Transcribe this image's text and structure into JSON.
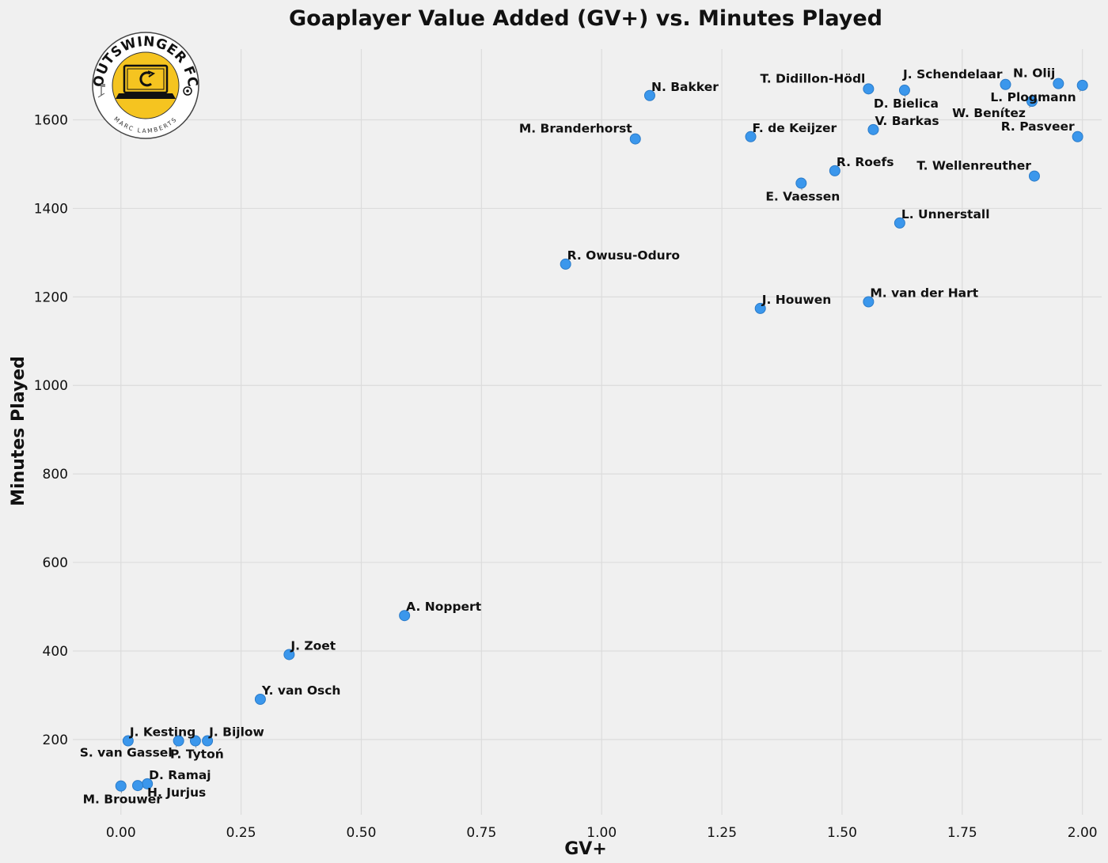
{
  "chart_data": {
    "type": "scatter",
    "title": "Goaplayer Value Added (GV+) vs. Minutes Played",
    "xlabel": "GV+",
    "ylabel": "Minutes Played",
    "xlim": [
      -0.1,
      2.04
    ],
    "ylim": [
      30,
      1760
    ],
    "x_ticks": [
      "0.00",
      "0.25",
      "0.50",
      "0.75",
      "1.00",
      "1.25",
      "1.50",
      "1.75",
      "2.00"
    ],
    "x_tick_values": [
      0,
      0.25,
      0.5,
      0.75,
      1.0,
      1.25,
      1.5,
      1.75,
      2.0
    ],
    "y_ticks": [
      "200",
      "400",
      "600",
      "800",
      "1000",
      "1200",
      "1400",
      "1600"
    ],
    "y_tick_values": [
      200,
      400,
      600,
      800,
      1000,
      1200,
      1400,
      1600
    ],
    "grid": true,
    "marker_color": "#3b97ec",
    "points": [
      {
        "name": "N. Bakker",
        "x": 1.1,
        "y": 1655,
        "label_pos": "above-right"
      },
      {
        "name": "M. Branderhorst",
        "x": 1.07,
        "y": 1557,
        "label_pos": "above-left"
      },
      {
        "name": "T. Didillon-Hödl",
        "x": 1.555,
        "y": 1670,
        "label_pos": "above-left"
      },
      {
        "name": "J. Schendelaar",
        "x": 1.84,
        "y": 1680,
        "label_pos": "above-left"
      },
      {
        "name": "N. Olij",
        "x": 1.95,
        "y": 1682,
        "label_pos": "above-left"
      },
      {
        "name": "D. Bielica",
        "x": 1.63,
        "y": 1667,
        "label_pos": "below"
      },
      {
        "name": "L. Plogmann",
        "x": 2.0,
        "y": 1678,
        "label_pos": "below-left"
      },
      {
        "name": "W. Benítez",
        "x": 1.895,
        "y": 1642,
        "label_pos": "below-left"
      },
      {
        "name": "F. de Keijzer",
        "x": 1.31,
        "y": 1562,
        "label_pos": "above-right"
      },
      {
        "name": "V. Barkas",
        "x": 1.565,
        "y": 1578,
        "label_pos": "above-right"
      },
      {
        "name": "R. Pasveer",
        "x": 1.99,
        "y": 1562,
        "label_pos": "above-left"
      },
      {
        "name": "R. Roefs",
        "x": 1.485,
        "y": 1485,
        "label_pos": "above-right"
      },
      {
        "name": "T. Wellenreuther",
        "x": 1.9,
        "y": 1473,
        "label_pos": "above-left"
      },
      {
        "name": "E. Vaessen",
        "x": 1.415,
        "y": 1457,
        "label_pos": "below"
      },
      {
        "name": "L. Unnerstall",
        "x": 1.62,
        "y": 1367,
        "label_pos": "above-right"
      },
      {
        "name": "R. Owusu-Oduro",
        "x": 0.925,
        "y": 1274,
        "label_pos": "above-right"
      },
      {
        "name": "J. Houwen",
        "x": 1.33,
        "y": 1174,
        "label_pos": "above-right"
      },
      {
        "name": "M. van der Hart",
        "x": 1.555,
        "y": 1189,
        "label_pos": "above-right"
      },
      {
        "name": "A. Noppert",
        "x": 0.59,
        "y": 480,
        "label_pos": "above-right"
      },
      {
        "name": "J. Zoet",
        "x": 0.35,
        "y": 392,
        "label_pos": "above-right"
      },
      {
        "name": "Y. van Osch",
        "x": 0.29,
        "y": 291,
        "label_pos": "above-right"
      },
      {
        "name": "J. Kesting",
        "x": 0.015,
        "y": 197,
        "label_pos": "above-right"
      },
      {
        "name": "S. van Gassel",
        "x": 0.12,
        "y": 197,
        "label_pos": "below-left"
      },
      {
        "name": "J. Bijlow",
        "x": 0.18,
        "y": 197,
        "label_pos": "above-right"
      },
      {
        "name": "P. Tytoń",
        "x": 0.155,
        "y": 197,
        "label_pos": "below"
      },
      {
        "name": "D. Ramaj",
        "x": 0.055,
        "y": 100,
        "label_pos": "above-right"
      },
      {
        "name": "H. Jurjus",
        "x": 0.035,
        "y": 96,
        "label_pos": "below-right"
      },
      {
        "name": "M. Brouwer",
        "x": 0.0,
        "y": 95,
        "label_pos": "below"
      }
    ]
  },
  "logo": {
    "club": "OUTSWINGER FC",
    "author": "MARC LAMBERTS",
    "badge_color": "#f5c420"
  }
}
